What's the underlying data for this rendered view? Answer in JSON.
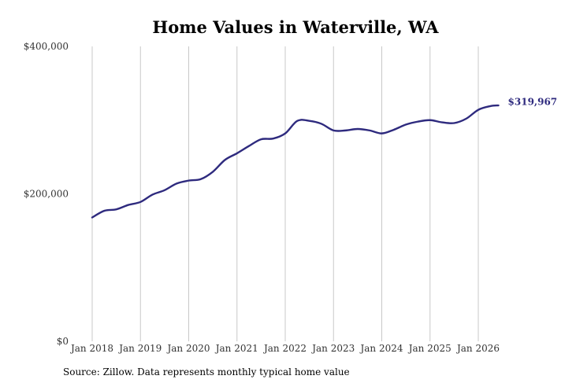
{
  "chart_data": {
    "type": "line",
    "title": "Home Values in Waterville, WA",
    "source": "Source: Zillow. Data represents monthly typical home value",
    "series_color": "#2e2a7e",
    "grid": "vertical",
    "ylim": [
      0,
      400000
    ],
    "yticks": [
      {
        "value": 0,
        "label": "$0"
      },
      {
        "value": 200000,
        "label": "$200,000"
      },
      {
        "value": 400000,
        "label": "$400,000"
      }
    ],
    "xlim": [
      "2018-01",
      "2026-06"
    ],
    "xticks": [
      {
        "date": "2018-01",
        "label": "Jan 2018"
      },
      {
        "date": "2019-01",
        "label": "Jan 2019"
      },
      {
        "date": "2020-01",
        "label": "Jan 2020"
      },
      {
        "date": "2021-01",
        "label": "Jan 2021"
      },
      {
        "date": "2022-01",
        "label": "Jan 2022"
      },
      {
        "date": "2023-01",
        "label": "Jan 2023"
      },
      {
        "date": "2024-01",
        "label": "Jan 2024"
      },
      {
        "date": "2025-01",
        "label": "Jan 2025"
      },
      {
        "date": "2026-01",
        "label": "Jan 2026"
      }
    ],
    "end_label": "$319,967",
    "series": [
      {
        "points": [
          {
            "date": "2018-01",
            "value": 168000
          },
          {
            "date": "2018-04",
            "value": 177000
          },
          {
            "date": "2018-07",
            "value": 179000
          },
          {
            "date": "2018-10",
            "value": 185000
          },
          {
            "date": "2019-01",
            "value": 189000
          },
          {
            "date": "2019-04",
            "value": 199000
          },
          {
            "date": "2019-07",
            "value": 205000
          },
          {
            "date": "2019-10",
            "value": 214000
          },
          {
            "date": "2020-01",
            "value": 218000
          },
          {
            "date": "2020-04",
            "value": 220000
          },
          {
            "date": "2020-07",
            "value": 230000
          },
          {
            "date": "2020-10",
            "value": 246000
          },
          {
            "date": "2021-01",
            "value": 255000
          },
          {
            "date": "2021-04",
            "value": 265000
          },
          {
            "date": "2021-07",
            "value": 274000
          },
          {
            "date": "2021-10",
            "value": 275000
          },
          {
            "date": "2022-01",
            "value": 282000
          },
          {
            "date": "2022-04",
            "value": 299000
          },
          {
            "date": "2022-07",
            "value": 299000
          },
          {
            "date": "2022-10",
            "value": 295000
          },
          {
            "date": "2023-01",
            "value": 286000
          },
          {
            "date": "2023-04",
            "value": 286000
          },
          {
            "date": "2023-07",
            "value": 288000
          },
          {
            "date": "2023-10",
            "value": 286000
          },
          {
            "date": "2024-01",
            "value": 282000
          },
          {
            "date": "2024-04",
            "value": 287000
          },
          {
            "date": "2024-07",
            "value": 294000
          },
          {
            "date": "2024-10",
            "value": 298000
          },
          {
            "date": "2025-01",
            "value": 300000
          },
          {
            "date": "2025-04",
            "value": 297000
          },
          {
            "date": "2025-07",
            "value": 296000
          },
          {
            "date": "2025-10",
            "value": 302000
          },
          {
            "date": "2026-01",
            "value": 314000
          },
          {
            "date": "2026-04",
            "value": 319000
          },
          {
            "date": "2026-06",
            "value": 319967
          }
        ]
      }
    ]
  }
}
